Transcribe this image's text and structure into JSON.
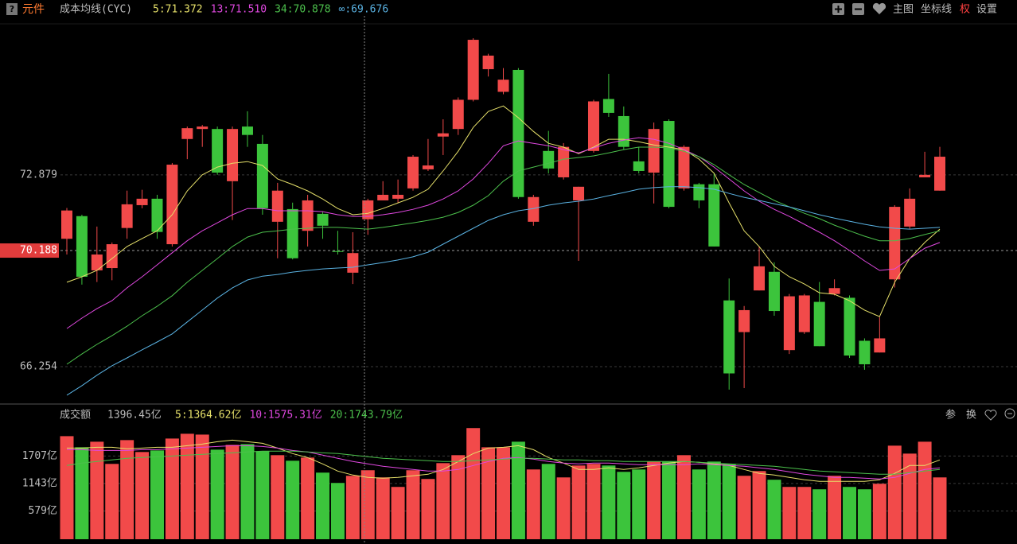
{
  "header": {
    "icon_help": "?",
    "title": "元件",
    "indicator": "成本均线(CYC)"
  },
  "toolbar": [
    "主图",
    "坐标线",
    "权",
    "设置"
  ],
  "volume_toolbar": [
    "参",
    "换"
  ],
  "chart_data": [
    {
      "type": "candlestick",
      "log_scale": true,
      "grid": true,
      "up_color": "#f24a4a",
      "down_color": "#3cc43c",
      "ylim": [
        65.11,
        78.56
      ],
      "yticks": [
        66.254,
        70.188,
        72.879
      ],
      "crosshair_ytick": 1,
      "open": [
        70.6,
        71.4,
        69.5,
        69.58,
        70.98,
        71.79,
        72.02,
        70.41,
        74.19,
        74.56,
        74.56,
        72.65,
        74.65,
        74.01,
        71.2,
        71.65,
        70.88,
        71.48,
        70.17,
        69.42,
        71.29,
        71.96,
        72.02,
        72.39,
        73.08,
        74.28,
        74.56,
        75.65,
        76.81,
        75.95,
        76.78,
        71.2,
        73.75,
        72.79,
        71.96,
        73.75,
        75.68,
        75.04,
        73.37,
        72.96,
        74.86,
        72.39,
        72.54,
        72.54,
        68.47,
        67.4,
        68.81,
        69.45,
        66.8,
        67.4,
        68.42,
        68.69,
        68.56,
        67.11,
        66.72,
        69.19,
        71.03,
        72.79,
        72.31
      ],
      "high": [
        71.69,
        71.45,
        71.03,
        70.47,
        72.31,
        72.34,
        72.16,
        73.31,
        74.65,
        74.71,
        74.65,
        74.65,
        75.22,
        74.34,
        72.59,
        71.88,
        72.16,
        71.57,
        70.88,
        70.83,
        72.02,
        72.65,
        72.71,
        73.6,
        74.19,
        74.92,
        75.74,
        78.0,
        77.4,
        76.85,
        76.85,
        72.16,
        74.49,
        74.04,
        72.45,
        75.65,
        76.63,
        75.4,
        73.9,
        74.8,
        74.92,
        73.96,
        72.59,
        72.93,
        69.22,
        68.28,
        70.33,
        69.78,
        68.69,
        68.69,
        69.1,
        69.19,
        68.64,
        67.19,
        67.9,
        71.79,
        72.39,
        73.72,
        73.9
      ],
      "low": [
        70.05,
        69.01,
        69.1,
        69.16,
        70.6,
        71.68,
        70.6,
        70.33,
        73.45,
        73.9,
        72.88,
        71.26,
        73.9,
        71.45,
        69.92,
        69.88,
        70.33,
        70.6,
        70.05,
        69.03,
        70.74,
        71.96,
        71.88,
        72.31,
        73.02,
        73.6,
        74.34,
        75.59,
        76.53,
        75.86,
        72.02,
        71.06,
        72.93,
        72.71,
        69.83,
        73.69,
        75.01,
        73.81,
        72.93,
        71.85,
        71.68,
        72.31,
        71.68,
        70.33,
        65.5,
        65.55,
        68.81,
        67.95,
        66.67,
        67.34,
        66.93,
        68.64,
        66.54,
        66.15,
        66.72,
        68.91,
        70.95,
        72.79,
        72.31
      ],
      "close": [
        71.6,
        69.28,
        70.05,
        70.41,
        71.82,
        72.02,
        70.84,
        73.25,
        74.59,
        74.65,
        72.96,
        74.56,
        74.34,
        71.68,
        72.31,
        69.92,
        71.96,
        71.06,
        70.14,
        70.1,
        71.96,
        72.16,
        72.16,
        73.54,
        73.22,
        74.4,
        75.65,
        77.94,
        77.33,
        76.41,
        72.08,
        72.08,
        73.11,
        73.9,
        72.45,
        75.59,
        75.16,
        73.9,
        73.02,
        74.56,
        71.73,
        73.9,
        71.96,
        70.33,
        66.03,
        68.14,
        69.64,
        68.11,
        68.61,
        68.64,
        66.93,
        68.89,
        66.62,
        66.33,
        67.19,
        71.73,
        72.02,
        72.88,
        73.54
      ],
      "series": [
        {
          "label": "5:71.372",
          "color": "#e6e06a",
          "values": [
            69.09,
            69.28,
            69.5,
            69.91,
            70.33,
            70.61,
            70.88,
            71.45,
            72.3,
            72.88,
            73.16,
            73.3,
            73.36,
            73.22,
            72.73,
            72.53,
            72.3,
            72.01,
            71.67,
            71.45,
            71.5,
            71.67,
            71.87,
            72.07,
            72.36,
            73.02,
            73.74,
            74.62,
            75.21,
            75.42,
            74.98,
            74.47,
            74.03,
            73.89,
            73.65,
            73.89,
            74.18,
            74.18,
            74.09,
            73.97,
            73.89,
            73.8,
            73.45,
            72.94,
            71.87,
            70.88,
            70.33,
            69.64,
            69.28,
            69.03,
            68.73,
            68.68,
            68.46,
            68.14,
            67.92,
            69.09,
            69.91,
            70.47,
            70.94
          ]
        },
        {
          "label": "13:71.510",
          "color": "#e048e0",
          "values": [
            67.52,
            67.87,
            68.19,
            68.46,
            68.9,
            69.28,
            69.69,
            70.11,
            70.53,
            70.88,
            71.16,
            71.45,
            71.67,
            71.67,
            71.59,
            71.59,
            71.59,
            71.56,
            71.45,
            71.39,
            71.39,
            71.45,
            71.53,
            71.64,
            71.79,
            72.01,
            72.3,
            72.73,
            73.3,
            73.94,
            74.12,
            74.03,
            73.94,
            73.8,
            73.68,
            73.86,
            74.03,
            74.15,
            74.24,
            74.18,
            74.03,
            73.8,
            73.54,
            73.16,
            72.73,
            72.3,
            71.93,
            71.64,
            71.39,
            71.11,
            70.83,
            70.53,
            70.19,
            69.83,
            69.5,
            69.55,
            69.91,
            70.27,
            70.47
          ]
        },
        {
          "label": "34:70.878",
          "color": "#4cc04c",
          "values": [
            66.33,
            66.67,
            66.99,
            67.28,
            67.6,
            67.95,
            68.27,
            68.63,
            69.09,
            69.5,
            69.91,
            70.33,
            70.66,
            70.83,
            70.88,
            70.94,
            70.97,
            71.0,
            71.0,
            70.97,
            70.94,
            71.0,
            71.08,
            71.16,
            71.25,
            71.36,
            71.53,
            71.79,
            72.13,
            72.65,
            73.02,
            73.16,
            73.3,
            73.45,
            73.51,
            73.57,
            73.68,
            73.8,
            73.89,
            73.89,
            73.86,
            73.74,
            73.54,
            73.25,
            72.88,
            72.53,
            72.24,
            71.96,
            71.73,
            71.5,
            71.31,
            71.08,
            70.88,
            70.69,
            70.53,
            70.53,
            70.61,
            70.75,
            70.88
          ]
        },
        {
          "label": "∞:69.676",
          "color": "#5ab2e2",
          "values": [
            65.32,
            65.63,
            65.97,
            66.28,
            66.54,
            66.81,
            67.07,
            67.34,
            67.74,
            68.14,
            68.55,
            68.9,
            69.17,
            69.3,
            69.36,
            69.44,
            69.5,
            69.55,
            69.58,
            69.61,
            69.69,
            69.77,
            69.86,
            69.97,
            70.13,
            70.41,
            70.69,
            70.97,
            71.25,
            71.45,
            71.59,
            71.67,
            71.79,
            71.87,
            71.93,
            72.01,
            72.13,
            72.24,
            72.36,
            72.42,
            72.45,
            72.45,
            72.42,
            72.36,
            72.21,
            72.07,
            71.96,
            71.84,
            71.73,
            71.59,
            71.45,
            71.33,
            71.22,
            71.11,
            71.02,
            70.97,
            70.94,
            70.97,
            71.0
          ]
        }
      ]
    },
    {
      "type": "bar",
      "title": "成交额",
      "current": "1396.45亿",
      "grid": true,
      "ylim": [
        0,
        2300
      ],
      "yticks": [
        {
          "value": 579,
          "label": "579亿"
        },
        {
          "value": 1143,
          "label": "1143亿"
        },
        {
          "value": 1707,
          "label": "1707亿"
        }
      ],
      "values": [
        2114,
        1886,
        2000,
        1545,
        2033,
        1789,
        1821,
        2065,
        2163,
        2146,
        1837,
        1935,
        1951,
        1805,
        1724,
        1610,
        1675,
        1366,
        1154,
        1301,
        1415,
        1268,
        1073,
        1415,
        1236,
        1561,
        1724,
        2280,
        1886,
        1886,
        2000,
        1431,
        1545,
        1268,
        1512,
        1545,
        1512,
        1382,
        1431,
        1593,
        1593,
        1724,
        1431,
        1593,
        1545,
        1301,
        1398,
        1220,
        1073,
        1073,
        1024,
        1301,
        1073,
        1024,
        1138,
        1919,
        1756,
        2000,
        1268
      ],
      "series": [
        {
          "label": "5:1364.62亿",
          "color": "#e6e06a",
          "values": [
            1870,
            1870,
            1886,
            1886,
            1854,
            1870,
            1886,
            1886,
            1919,
            1951,
            2000,
            2033,
            2000,
            1967,
            1870,
            1756,
            1675,
            1545,
            1398,
            1317,
            1268,
            1252,
            1268,
            1301,
            1333,
            1431,
            1593,
            1756,
            1870,
            1886,
            1919,
            1837,
            1675,
            1561,
            1431,
            1431,
            1463,
            1431,
            1463,
            1512,
            1561,
            1593,
            1577,
            1545,
            1512,
            1431,
            1350,
            1317,
            1268,
            1220,
            1187,
            1187,
            1187,
            1187,
            1220,
            1350,
            1512,
            1512,
            1626
          ]
        },
        {
          "label": "10:1575.31亿",
          "color": "#e048e0",
          "values": [
            1837,
            1837,
            1821,
            1821,
            1821,
            1837,
            1837,
            1854,
            1870,
            1886,
            1902,
            1919,
            1919,
            1902,
            1870,
            1821,
            1789,
            1724,
            1659,
            1593,
            1545,
            1496,
            1463,
            1431,
            1398,
            1398,
            1431,
            1512,
            1593,
            1659,
            1675,
            1642,
            1593,
            1561,
            1545,
            1561,
            1561,
            1545,
            1528,
            1528,
            1528,
            1528,
            1545,
            1528,
            1512,
            1496,
            1463,
            1431,
            1382,
            1333,
            1301,
            1268,
            1268,
            1252,
            1236,
            1268,
            1350,
            1431,
            1463
          ]
        },
        {
          "label": "20:1743.79亿",
          "color": "#4cc04c",
          "values": [
            1512,
            1561,
            1593,
            1626,
            1659,
            1675,
            1691,
            1707,
            1724,
            1740,
            1756,
            1772,
            1789,
            1805,
            1805,
            1805,
            1789,
            1772,
            1756,
            1724,
            1691,
            1659,
            1642,
            1626,
            1610,
            1593,
            1593,
            1610,
            1626,
            1642,
            1659,
            1659,
            1642,
            1626,
            1626,
            1610,
            1610,
            1593,
            1593,
            1593,
            1593,
            1593,
            1577,
            1561,
            1545,
            1528,
            1512,
            1496,
            1463,
            1431,
            1398,
            1382,
            1366,
            1350,
            1333,
            1333,
            1366,
            1398,
            1431
          ]
        }
      ]
    }
  ]
}
